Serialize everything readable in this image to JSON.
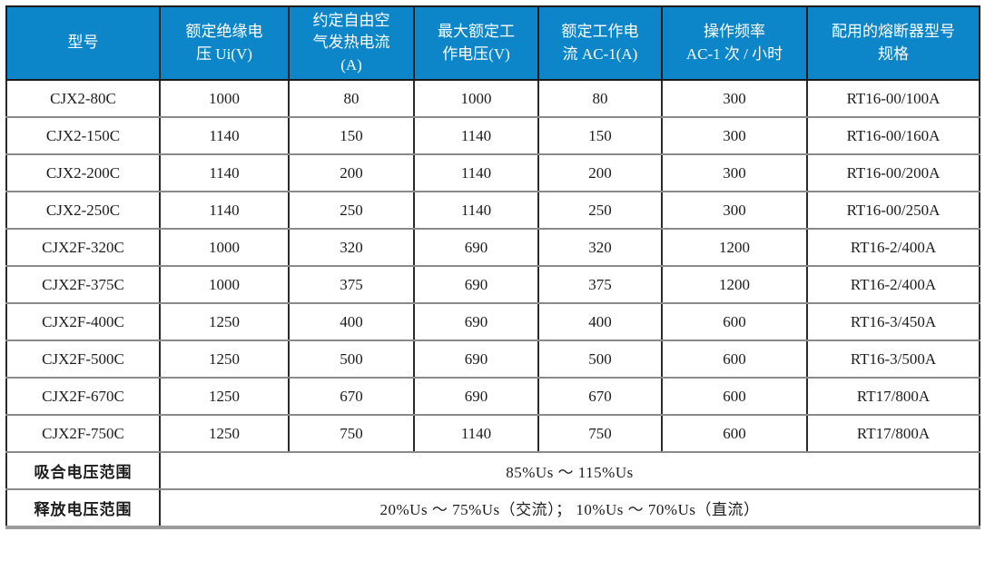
{
  "table": {
    "headers": [
      "型号",
      "额定绝缘电\n压 Ui(V)",
      "约定自由空\n气发热电流\n(A)",
      "最大额定工\n作电压(V)",
      "额定工作电\n流 AC-1(A)",
      "操作频率\nAC-1 次 / 小时",
      "配用的熔断器型号\n规格"
    ],
    "rows": [
      [
        "CJX2-80C",
        "1000",
        "80",
        "1000",
        "80",
        "300",
        "RT16-00/100A"
      ],
      [
        "CJX2-150C",
        "1140",
        "150",
        "1140",
        "150",
        "300",
        "RT16-00/160A"
      ],
      [
        "CJX2-200C",
        "1140",
        "200",
        "1140",
        "200",
        "300",
        "RT16-00/200A"
      ],
      [
        "CJX2-250C",
        "1140",
        "250",
        "1140",
        "250",
        "300",
        "RT16-00/250A"
      ],
      [
        "CJX2F-320C",
        "1000",
        "320",
        "690",
        "320",
        "1200",
        "RT16-2/400A"
      ],
      [
        "CJX2F-375C",
        "1000",
        "375",
        "690",
        "375",
        "1200",
        "RT16-2/400A"
      ],
      [
        "CJX2F-400C",
        "1250",
        "400",
        "690",
        "400",
        "600",
        "RT16-3/450A"
      ],
      [
        "CJX2F-500C",
        "1250",
        "500",
        "690",
        "500",
        "600",
        "RT16-3/500A"
      ],
      [
        "CJX2F-670C",
        "1250",
        "670",
        "690",
        "670",
        "600",
        "RT17/800A"
      ],
      [
        "CJX2F-750C",
        "1250",
        "750",
        "1140",
        "750",
        "600",
        "RT17/800A"
      ]
    ],
    "footer_rows": [
      {
        "label": "吸合电压范围",
        "value": "85%Us ～ 115%Us"
      },
      {
        "label": "释放电压范围",
        "value": "20%Us ～ 75%Us（交流）； 10%Us ～ 70%Us（直流）"
      }
    ]
  },
  "colors": {
    "header_bg": "#0c86c8",
    "header_text": "#ffffff",
    "grid_dark": "#2a2a2a",
    "grid_gray": "#8a8a8a",
    "outer_border": "#3a3a3a",
    "bottom_border": "#9b9b9b",
    "body_text": "#1c1c1c"
  }
}
